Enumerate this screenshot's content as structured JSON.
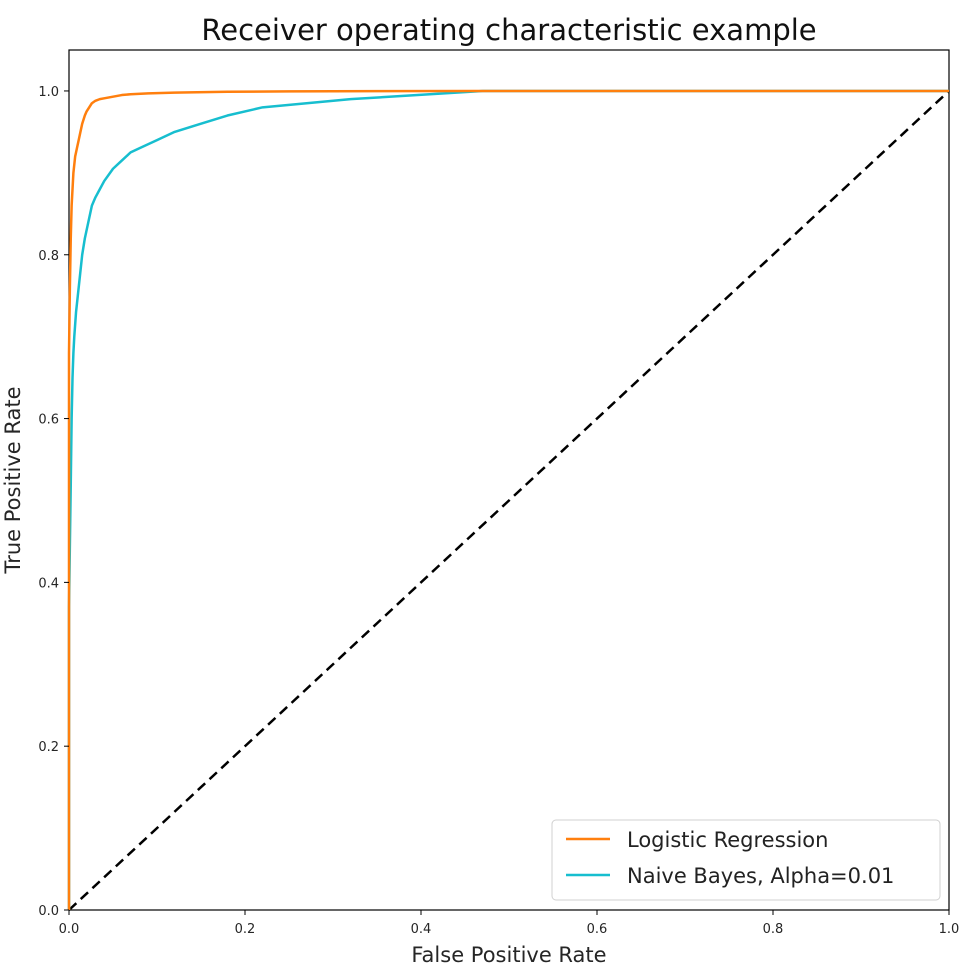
{
  "chart_data": {
    "type": "line",
    "title": "Receiver operating characteristic example",
    "xlabel": "False Positive Rate",
    "ylabel": "True Positive Rate",
    "xlim": [
      0.0,
      1.0
    ],
    "ylim": [
      0.0,
      1.05
    ],
    "xticks": [
      "0.0",
      "0.2",
      "0.4",
      "0.6",
      "0.8",
      "1.0"
    ],
    "yticks": [
      "0.0",
      "0.2",
      "0.4",
      "0.6",
      "0.8",
      "1.0"
    ],
    "grid": false,
    "legend_position": "lower-right",
    "series": [
      {
        "name": "Logistic Regression",
        "color": "#ff7f0e",
        "x": [
          0.0,
          0.0,
          0.001,
          0.002,
          0.003,
          0.004,
          0.005,
          0.007,
          0.009,
          0.011,
          0.013,
          0.015,
          0.018,
          0.02,
          0.023,
          0.026,
          0.03,
          0.035,
          0.04,
          0.05,
          0.06,
          0.07,
          0.09,
          0.12,
          0.18,
          0.25,
          0.35,
          0.46,
          1.0
        ],
        "y": [
          0.0,
          0.68,
          0.76,
          0.82,
          0.86,
          0.88,
          0.9,
          0.92,
          0.93,
          0.94,
          0.95,
          0.96,
          0.97,
          0.975,
          0.98,
          0.985,
          0.988,
          0.99,
          0.991,
          0.993,
          0.995,
          0.996,
          0.997,
          0.998,
          0.999,
          0.9995,
          0.9998,
          1.0,
          1.0
        ]
      },
      {
        "name": "Naive Bayes, Alpha=0.01",
        "color": "#17becf",
        "x": [
          0.0,
          0.0,
          0.002,
          0.003,
          0.004,
          0.005,
          0.006,
          0.008,
          0.01,
          0.012,
          0.015,
          0.018,
          0.022,
          0.026,
          0.03,
          0.035,
          0.04,
          0.05,
          0.06,
          0.07,
          0.08,
          0.1,
          0.12,
          0.15,
          0.18,
          0.22,
          0.27,
          0.32,
          0.38,
          0.44,
          0.47,
          1.0
        ],
        "y": [
          0.0,
          0.37,
          0.52,
          0.6,
          0.65,
          0.68,
          0.7,
          0.73,
          0.75,
          0.77,
          0.8,
          0.82,
          0.84,
          0.86,
          0.87,
          0.88,
          0.89,
          0.905,
          0.915,
          0.925,
          0.93,
          0.94,
          0.95,
          0.96,
          0.97,
          0.98,
          0.985,
          0.99,
          0.994,
          0.998,
          1.0,
          1.0
        ]
      },
      {
        "name": "",
        "color": "#000000",
        "style": "dashed",
        "x": [
          0.0,
          1.0
        ],
        "y": [
          0.0,
          1.0
        ]
      }
    ]
  }
}
